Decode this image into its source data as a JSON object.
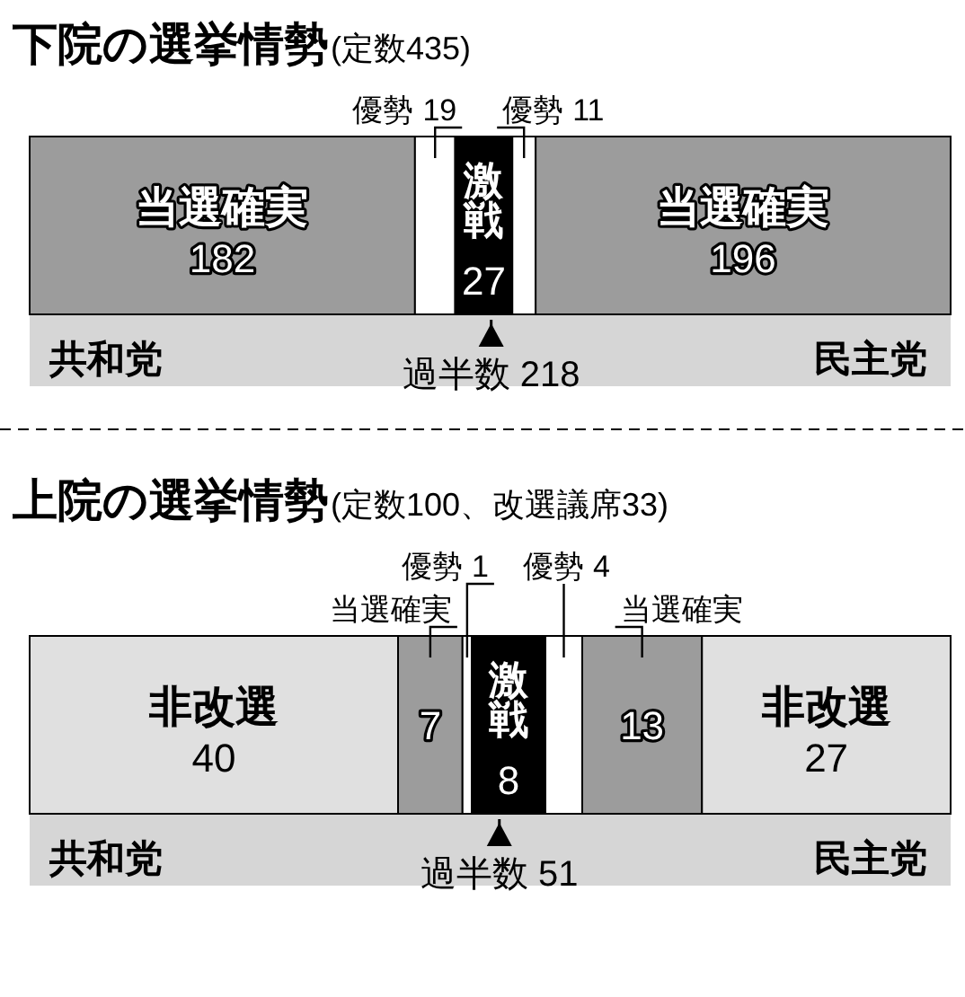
{
  "chart_data": [
    {
      "type": "bar",
      "orientation": "horizontal",
      "stacked": true,
      "title": "下院の選挙情勢",
      "subtitle": "(定数435)",
      "categories": [
        null
      ],
      "xlim": [
        0,
        435
      ],
      "tick_labels": false,
      "data_labels": true,
      "series": [
        {
          "name": "当選確実",
          "color": "#9c9c9c",
          "values": [
            182
          ]
        },
        {
          "name": "優勢",
          "color": "#ffffff",
          "values": [
            19
          ]
        },
        {
          "name": "激戦",
          "color": "#000000",
          "values": [
            27
          ]
        },
        {
          "name": "優勢",
          "color": "#ffffff",
          "values": [
            11
          ]
        },
        {
          "name": "当選確実",
          "color": "#9c9c9c",
          "values": [
            196
          ]
        }
      ],
      "ref_lines": [
        {
          "axis": "x",
          "value": 218,
          "label": "過半数 218",
          "color": "#000000"
        }
      ],
      "annotations": [
        "共和党",
        "民主党"
      ]
    },
    {
      "type": "bar",
      "orientation": "horizontal",
      "stacked": true,
      "title": "上院の選挙情勢",
      "subtitle": "(定数100、改選議席33)",
      "categories": [
        null
      ],
      "xlim": [
        0,
        100
      ],
      "tick_labels": false,
      "data_labels": true,
      "series": [
        {
          "name": "非改選",
          "color": "#e0e0e0",
          "values": [
            40
          ]
        },
        {
          "name": "当選確実",
          "color": "#9c9c9c",
          "values": [
            7
          ]
        },
        {
          "name": "優勢",
          "color": "#ffffff",
          "values": [
            1
          ]
        },
        {
          "name": "激戦",
          "color": "#000000",
          "values": [
            8
          ]
        },
        {
          "name": "優勢",
          "color": "#ffffff",
          "values": [
            4
          ]
        },
        {
          "name": "当選確実",
          "color": "#9c9c9c",
          "values": [
            13
          ]
        },
        {
          "name": "非改選",
          "color": "#e0e0e0",
          "values": [
            27
          ]
        }
      ],
      "ref_lines": [
        {
          "axis": "x",
          "value": 51,
          "label": "過半数 51",
          "color": "#000000"
        }
      ],
      "annotations": [
        "共和党",
        "民主党"
      ]
    }
  ]
}
